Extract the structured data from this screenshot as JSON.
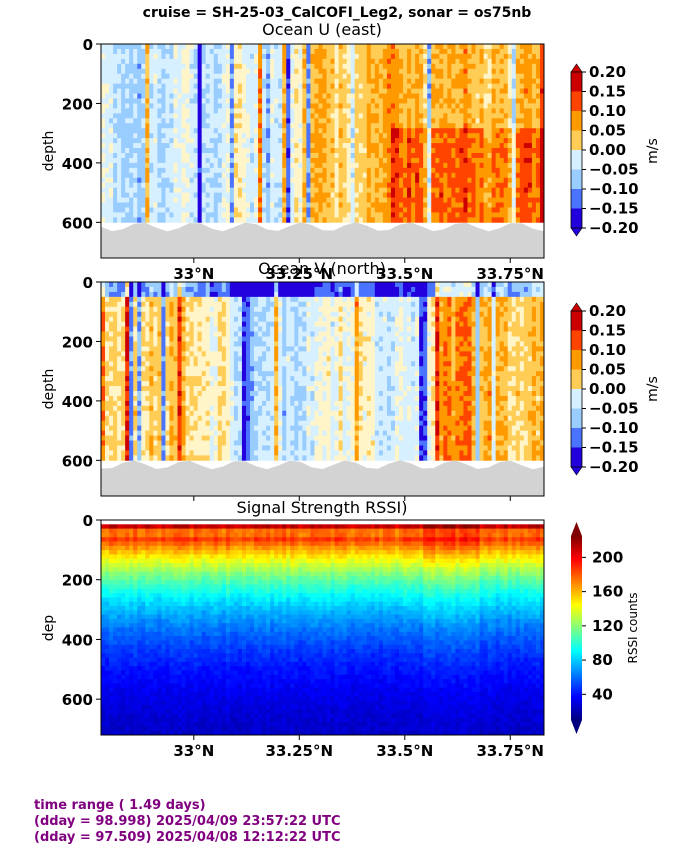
{
  "suptitle": "cruise = SH-25-03_CalCOFI_Leg2,  sonar = os75nb",
  "footer": {
    "line1": "time range ( 1.49 days)",
    "line2": "(dday = 98.998) 2025/04/09 23:57:22 UTC",
    "line3": "(dday = 97.509) 2025/04/08 12:12:22 UTC"
  },
  "chart_data": [
    {
      "type": "heatmap",
      "title": "Ocean U (east)",
      "ylabel": "depth",
      "yticks": [
        0,
        200,
        400,
        600
      ],
      "ylim": [
        720,
        0
      ],
      "x_axis": "latitude",
      "xlim": [
        32.78,
        33.83
      ],
      "xticks": [
        33.0,
        33.25,
        33.5,
        33.75
      ],
      "xticklabels": [
        "33°N",
        "33.25°N",
        "33.5°N",
        "33.75°N"
      ],
      "colorbar": {
        "label": "m/s",
        "ticks": [
          0.2,
          0.15,
          0.1,
          0.05,
          0.0,
          -0.05,
          -0.1,
          -0.15,
          -0.2
        ],
        "ticklabels": [
          "0.20",
          "0.15",
          "0.10",
          "0.05",
          "0.00",
          "−0.05",
          "−0.10",
          "−0.15",
          "−0.20"
        ],
        "colors": [
          "#cc0000",
          "#ff4400",
          "#ff9900",
          "#ffcc55",
          "#fff5c8",
          "#d6f0ff",
          "#99ccff",
          "#4a74ff",
          "#2200dd"
        ],
        "extend": "both"
      },
      "bottom_depth_range": [
        600,
        630
      ],
      "bottom_fill_color": "#d3d3d3"
    },
    {
      "type": "heatmap",
      "title": "Ocean V (north)",
      "ylabel": "depth",
      "yticks": [
        0,
        200,
        400,
        600
      ],
      "ylim": [
        720,
        0
      ],
      "x_axis": "latitude",
      "xlim": [
        32.78,
        33.83
      ],
      "xticks": [
        33.0,
        33.25,
        33.5,
        33.75
      ],
      "xticklabels": [
        "",
        "",
        "",
        ""
      ],
      "colorbar": {
        "label": "m/s",
        "ticks": [
          0.2,
          0.15,
          0.1,
          0.05,
          0.0,
          -0.05,
          -0.1,
          -0.15,
          -0.2
        ],
        "ticklabels": [
          "0.20",
          "0.15",
          "0.10",
          "0.05",
          "0.00",
          "−0.05",
          "−0.10",
          "−0.15",
          "−0.20"
        ],
        "colors": [
          "#cc0000",
          "#ff4400",
          "#ff9900",
          "#ffcc55",
          "#fff5c8",
          "#d6f0ff",
          "#99ccff",
          "#4a74ff",
          "#2200dd"
        ],
        "extend": "both"
      },
      "bottom_depth_range": [
        600,
        630
      ],
      "bottom_fill_color": "#d3d3d3"
    },
    {
      "type": "heatmap",
      "title": "Signal Strength RSSI)",
      "ylabel": "dep",
      "yticks": [
        0,
        200,
        400,
        600
      ],
      "ylim": [
        720,
        0
      ],
      "x_axis": "latitude",
      "xlim": [
        32.78,
        33.83
      ],
      "xticks": [
        33.0,
        33.25,
        33.5,
        33.75
      ],
      "xticklabels": [
        "33°N",
        "33.25°N",
        "33.5°N",
        "33.75°N"
      ],
      "colorbar": {
        "label": "RSSI counts",
        "range": [
          10,
          225
        ],
        "ticks": [
          40,
          80,
          120,
          160,
          200
        ],
        "ticklabels": [
          "40",
          "80",
          "120",
          "160",
          "200"
        ],
        "colormap": "jet",
        "extend": "both"
      }
    }
  ]
}
